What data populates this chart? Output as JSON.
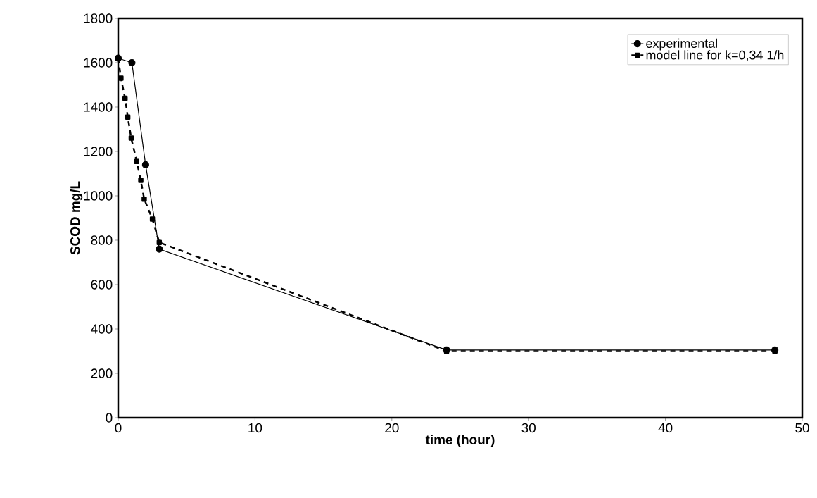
{
  "chart_data": {
    "type": "line",
    "xlabel": "time (hour)",
    "ylabel": "SCOD mg/L",
    "xlim": [
      0,
      50
    ],
    "xticks": [
      0,
      10,
      20,
      30,
      40,
      50
    ],
    "ylim": [
      0,
      1800
    ],
    "yticks": [
      0,
      200,
      400,
      600,
      800,
      1000,
      1200,
      1400,
      1600,
      1800
    ],
    "grid": false,
    "legend": "top right",
    "series": [
      {
        "name": "experimental",
        "color": "#000000",
        "marker": "circle",
        "line_style": "solid",
        "x": [
          0,
          1,
          2,
          3,
          24,
          48
        ],
        "values": [
          1620,
          1600,
          1140,
          760,
          305,
          305
        ]
      },
      {
        "name": "model line for k=0,34 1/h",
        "color": "#000000",
        "marker": "square",
        "line_style": "dashed",
        "x": [
          0,
          0.2,
          0.5,
          0.7,
          0.95,
          1.35,
          1.65,
          1.9,
          2.5,
          3,
          24,
          48
        ],
        "values": [
          1620,
          1530,
          1440,
          1355,
          1260,
          1155,
          1070,
          985,
          895,
          790,
          300,
          300
        ]
      }
    ]
  }
}
